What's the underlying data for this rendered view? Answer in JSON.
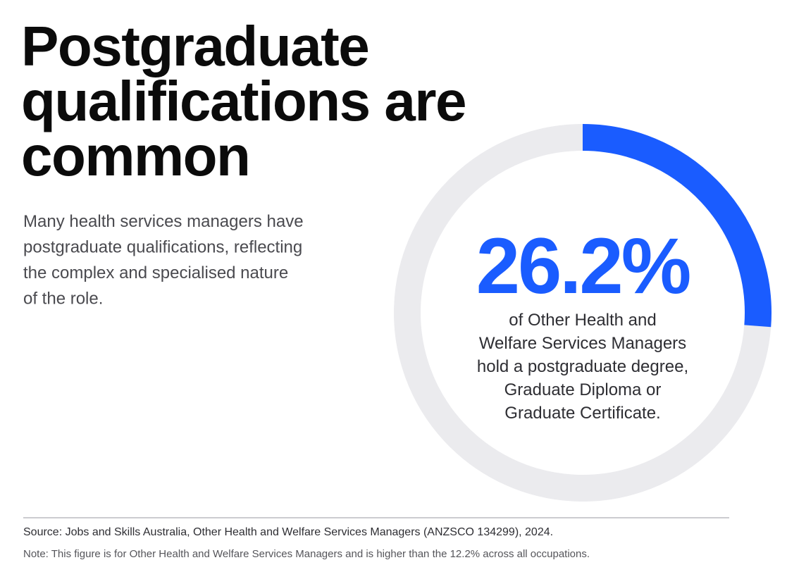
{
  "chart_data": {
    "type": "donut",
    "title_lines": [
      "Postgraduate",
      "qualifications are",
      "common"
    ],
    "description_lines": [
      "Many health services managers have",
      "postgraduate qualifications, reflecting",
      "the complex and specialised nature",
      "of the role."
    ],
    "categories": [
      null,
      null
    ],
    "values": [
      26.2,
      73.8
    ],
    "value_labels": [
      "26.2%",
      null
    ],
    "colors": [
      "#1a5cff",
      "#ebebee"
    ],
    "caption_lines": [
      "of Other Health and",
      "Welfare Services Managers",
      "hold a postgraduate degree,",
      "Graduate Diploma or",
      "Graduate Certificate."
    ],
    "source": "Source: Jobs and Skills Australia, Other Health and Welfare Services Managers (ANZSCO 134299), 2024.",
    "note": "Note: This figure is for Other Health and Welfare Services Managers and is higher than the 12.2% across all occupations."
  }
}
